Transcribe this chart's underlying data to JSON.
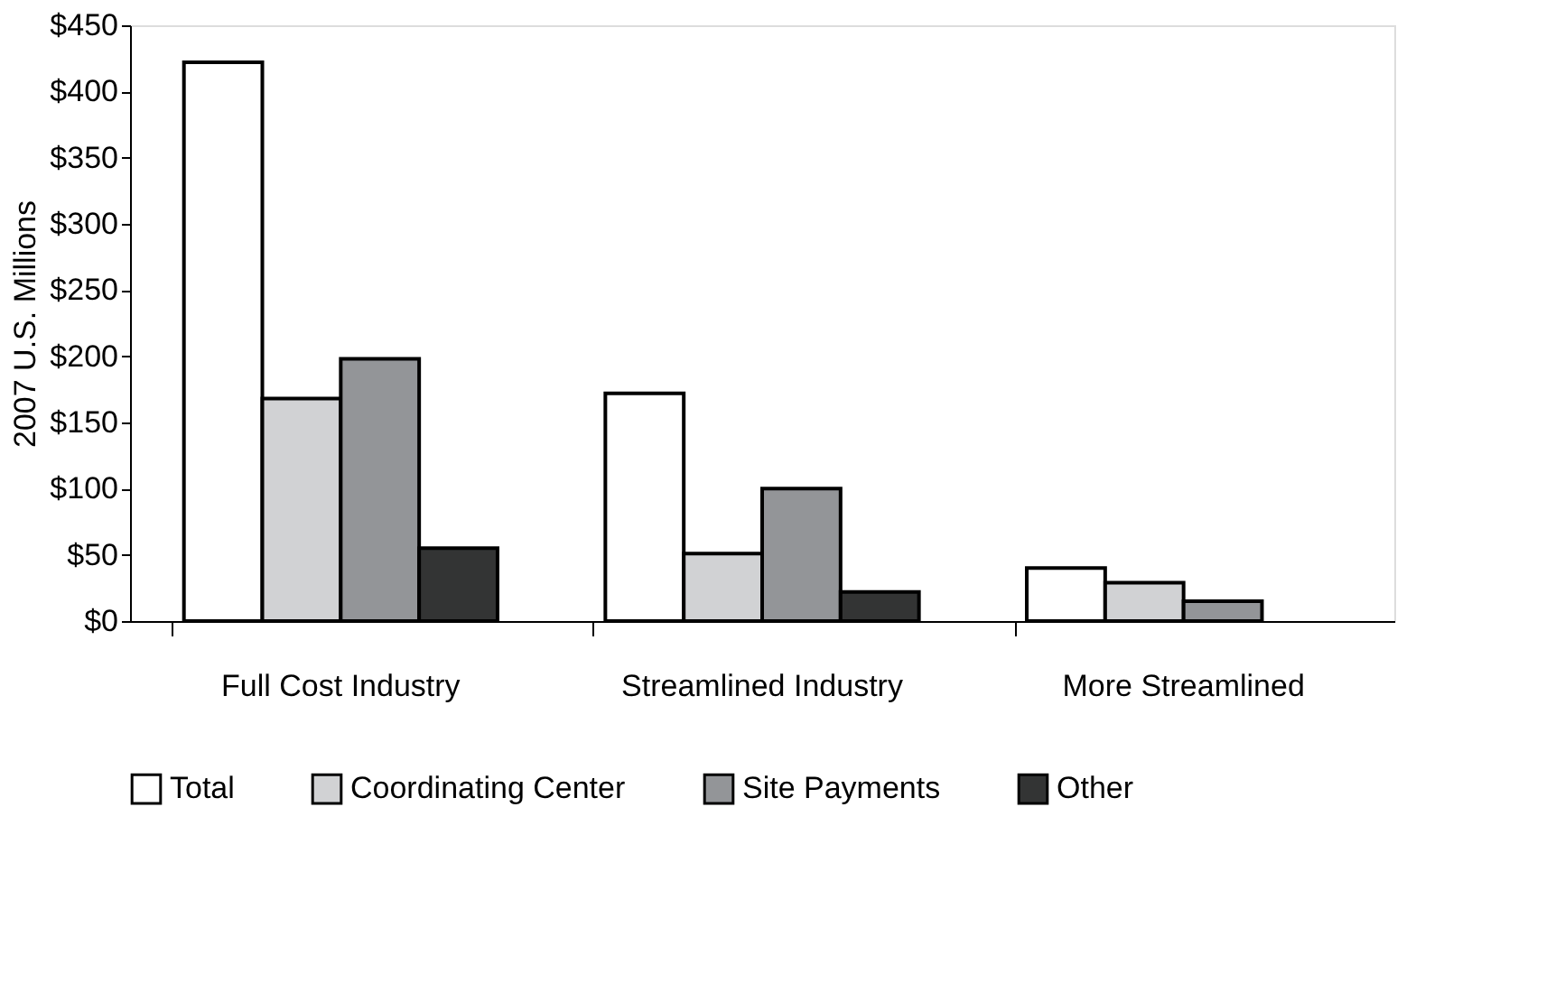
{
  "chart_data": {
    "type": "bar",
    "ylabel": "2007 U.S. Millions",
    "categories": [
      "Full Cost Industry",
      "Streamlined Industry",
      "More Streamlined"
    ],
    "series": [
      {
        "name": "Total",
        "color": "#ffffff",
        "values": [
          422,
          172,
          40
        ]
      },
      {
        "name": "Coordinating Center",
        "color": "#d1d2d4",
        "values": [
          168,
          51,
          29
        ]
      },
      {
        "name": "Site Payments",
        "color": "#939598",
        "values": [
          198,
          100,
          15
        ]
      },
      {
        "name": "Other",
        "color": "#333434",
        "values": [
          55,
          22,
          null
        ]
      }
    ],
    "ylim": [
      0,
      450
    ],
    "yticks": [
      {
        "value": 0,
        "label": "$0"
      },
      {
        "value": 50,
        "label": "$50"
      },
      {
        "value": 100,
        "label": "$100"
      },
      {
        "value": 150,
        "label": "$150"
      },
      {
        "value": 200,
        "label": "$200"
      },
      {
        "value": 250,
        "label": "$250"
      },
      {
        "value": 300,
        "label": "$300"
      },
      {
        "value": 350,
        "label": "$350"
      },
      {
        "value": 400,
        "label": "$400"
      },
      {
        "value": 450,
        "label": "$450"
      }
    ],
    "grid": false,
    "legend": "bottom"
  }
}
